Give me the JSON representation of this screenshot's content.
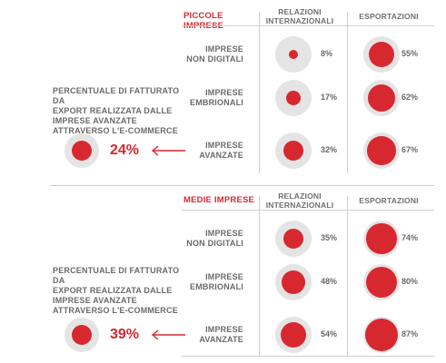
{
  "chart_data": {
    "type": "bubble-table",
    "panels": [
      {
        "title": "PICCOLE IMPRESE",
        "columns": [
          "RELAZIONI INTERNAZIONALI",
          "ESPORTAZIONI"
        ],
        "rows": [
          {
            "label": "IMPRESE NON DIGITALI",
            "relazioni": 8,
            "relazioni_label": "8%",
            "esportazioni": 55,
            "esportazioni_label": "55%"
          },
          {
            "label": "IMPRESE EMBRIONALI",
            "relazioni": 17,
            "relazioni_label": "17%",
            "esportazioni": 62,
            "esportazioni_label": "62%"
          },
          {
            "label": "IMPRESE AVANZATE",
            "relazioni": 32,
            "relazioni_label": "32%",
            "esportazioni": 67,
            "esportazioni_label": "67%"
          }
        ],
        "side_note": "PERCENTUALE DI FATTURATO DA EXPORT REALIZZATA DALLE IMPRESE AVANZATE ATTRAVERSO L'E-COMMERCE",
        "side_value": 24,
        "side_value_label": "24%"
      },
      {
        "title": "MEDIE IMPRESE",
        "columns": [
          "RELAZIONI INTERNAZIONALI",
          "ESPORTAZIONI"
        ],
        "rows": [
          {
            "label": "IMPRESE NON DIGITALI",
            "relazioni": 35,
            "relazioni_label": "35%",
            "esportazioni": 74,
            "esportazioni_label": "74%"
          },
          {
            "label": "IMPRESE EMBRIONALI",
            "relazioni": 48,
            "relazioni_label": "48%",
            "esportazioni": 80,
            "esportazioni_label": "80%"
          },
          {
            "label": "IMPRESE AVANZATE",
            "relazioni": 54,
            "relazioni_label": "54%",
            "esportazioni": 87,
            "esportazioni_label": "87%"
          }
        ],
        "side_note": "PERCENTUALE DI FATTURATO DA EXPORT REALIZZATA DALLE IMPRESE AVANZATE ATTRAVERSO L'E-COMMERCE",
        "side_value": 39,
        "side_value_label": "39%"
      }
    ],
    "colors": {
      "accent": "#d8282f",
      "bubble_bg": "#e4e4e4",
      "text": "#6a6a6a",
      "rule": "#cfcfcf"
    }
  }
}
